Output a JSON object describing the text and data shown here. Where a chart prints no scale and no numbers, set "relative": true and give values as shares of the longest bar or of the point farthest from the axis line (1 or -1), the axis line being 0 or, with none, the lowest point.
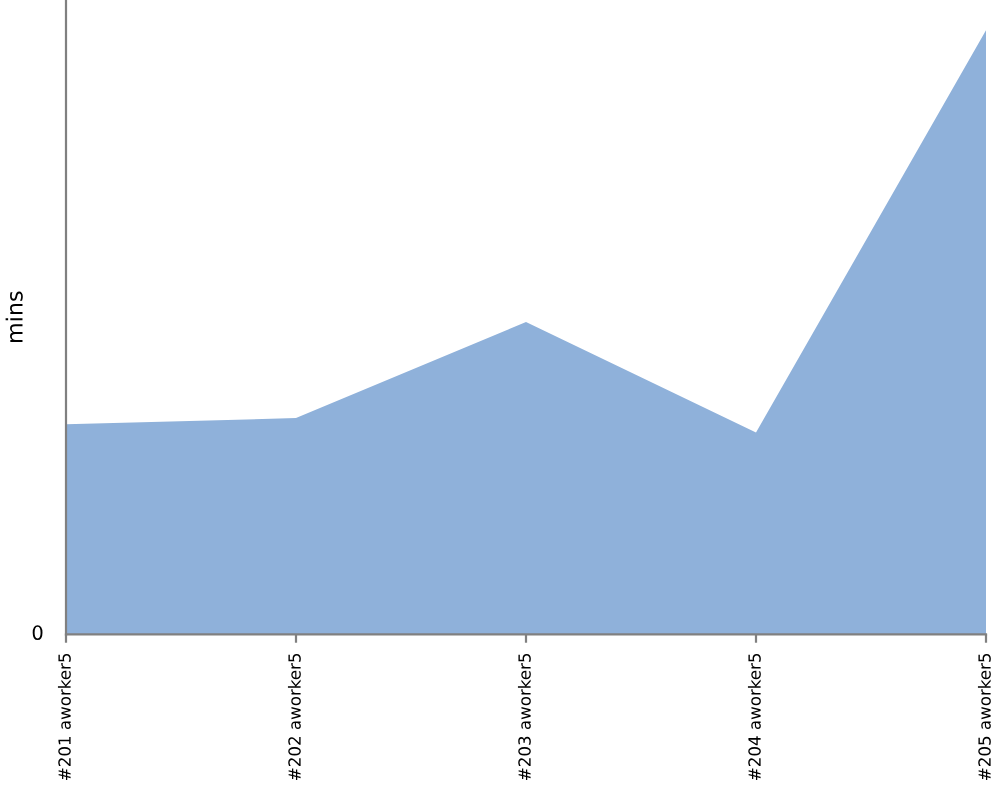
{
  "chart_data": {
    "type": "area",
    "ylabel": "mins",
    "relative": true,
    "annotations": [
      "0"
    ],
    "categories": [
      "#201 aworker5",
      "#202 aworker5",
      "#203 aworker5",
      "#204 aworker5",
      "#205 aworker5"
    ],
    "series": [
      {
        "color": "#8fb1da",
        "values": [
          0.348,
          0.358,
          0.517,
          0.334,
          1
        ]
      }
    ],
    "legend": false,
    "grid": false
  }
}
